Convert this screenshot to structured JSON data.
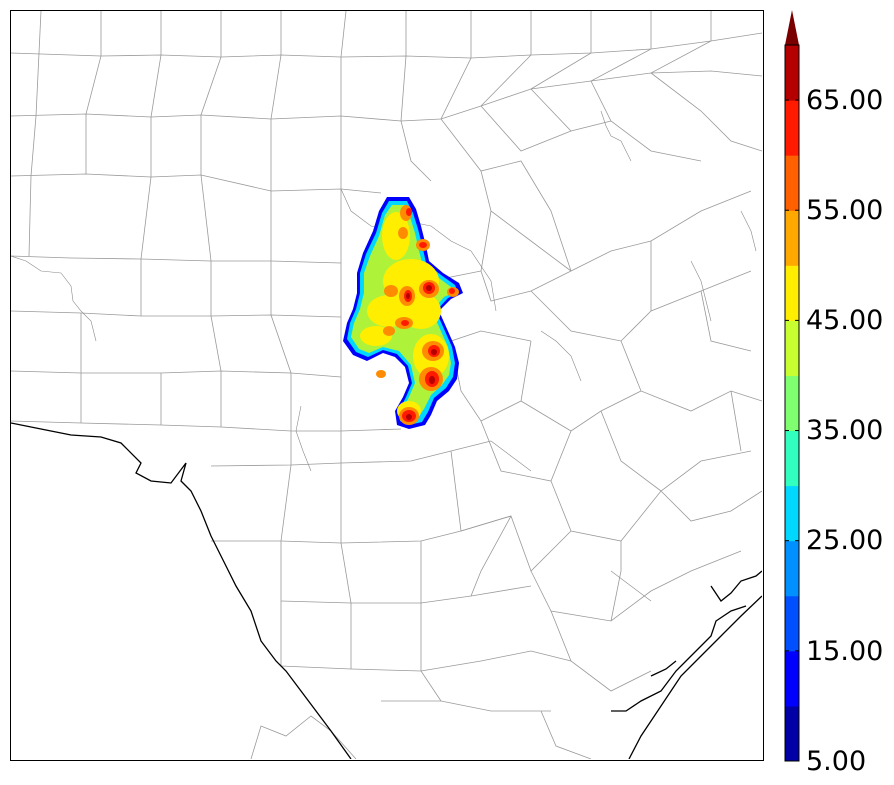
{
  "colorbar": {
    "labels": [
      "5.00",
      "15.00",
      "25.00",
      "35.00",
      "45.00",
      "55.00",
      "65.00"
    ],
    "bands": [
      "#0000a6",
      "#0000ff",
      "#0050ff",
      "#0090ff",
      "#00d8ff",
      "#30ffc0",
      "#80ff70",
      "#c8ff30",
      "#ffee00",
      "#ffa800",
      "#ff6000",
      "#ff1a00",
      "#b40000"
    ],
    "extend_color": "#7a0000"
  },
  "map_colors": {
    "county_lines": "#9a9a9a",
    "coastline": "#000000",
    "low": "#00d8ff",
    "mid": "#aef23a",
    "high_yellow": "#ffee00",
    "orange": "#ff8c00",
    "red": "#ff1a00",
    "darkred": "#b40000",
    "edge": "#0000ff"
  }
}
